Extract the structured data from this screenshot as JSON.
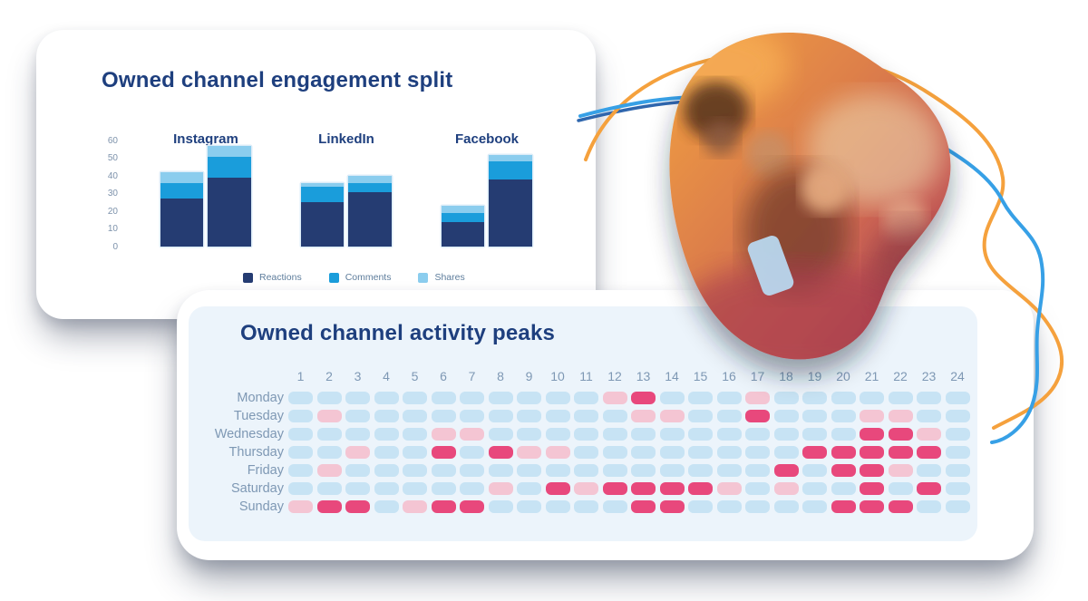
{
  "engagement_card": {
    "title": "Owned channel engagement split"
  },
  "activity_card": {
    "title": "Owned channel activity peaks"
  },
  "chart_data": [
    {
      "type": "bar",
      "stacked": true,
      "title": "Owned channel engagement split",
      "ylim": [
        0,
        60
      ],
      "y_ticks": [
        60,
        50,
        40,
        30,
        20,
        10,
        0
      ],
      "grid": false,
      "legend_position": "bottom",
      "series_names": [
        "Reactions",
        "Comments",
        "Shares"
      ],
      "series_colors": [
        "#253c72",
        "#1a9ddb",
        "#8bcdee"
      ],
      "groups": [
        {
          "category": "Instagram",
          "bars": [
            [
              27,
              9,
              6
            ],
            [
              39,
              12,
              6
            ]
          ]
        },
        {
          "category": "LinkedIn",
          "bars": [
            [
              25,
              9,
              2
            ],
            [
              31,
              5,
              4
            ]
          ]
        },
        {
          "category": "Facebook",
          "bars": [
            [
              14,
              5,
              4
            ],
            [
              38,
              10,
              4
            ]
          ]
        }
      ]
    },
    {
      "type": "heatmap",
      "title": "Owned channel activity peaks",
      "x_labels": [
        "1",
        "2",
        "3",
        "4",
        "5",
        "6",
        "7",
        "8",
        "9",
        "10",
        "11",
        "12",
        "13",
        "14",
        "15",
        "16",
        "17",
        "18",
        "19",
        "20",
        "21",
        "22",
        "23",
        "24"
      ],
      "y_labels": [
        "Monday",
        "Tuesday",
        "Wednesday",
        "Thursday",
        "Friday",
        "Saturday",
        "Sunday"
      ],
      "levels": [
        {
          "name": "low",
          "color": "#c7e3f4"
        },
        {
          "name": "medium",
          "color": "#f4c5d3"
        },
        {
          "name": "high",
          "color": "#e8487c"
        }
      ],
      "values": [
        [
          0,
          0,
          0,
          0,
          0,
          0,
          0,
          0,
          0,
          0,
          0,
          1,
          2,
          0,
          0,
          0,
          1,
          0,
          0,
          0,
          0,
          0,
          0,
          0
        ],
        [
          0,
          1,
          0,
          0,
          0,
          0,
          0,
          0,
          0,
          0,
          0,
          0,
          1,
          1,
          0,
          0,
          2,
          0,
          0,
          0,
          1,
          1,
          0,
          0
        ],
        [
          0,
          0,
          0,
          0,
          0,
          1,
          1,
          0,
          0,
          0,
          0,
          0,
          0,
          0,
          0,
          0,
          0,
          0,
          0,
          0,
          2,
          2,
          1,
          0
        ],
        [
          0,
          0,
          1,
          0,
          0,
          2,
          0,
          2,
          1,
          1,
          0,
          0,
          0,
          0,
          0,
          0,
          0,
          0,
          2,
          2,
          2,
          2,
          2,
          0
        ],
        [
          0,
          1,
          0,
          0,
          0,
          0,
          0,
          0,
          0,
          0,
          0,
          0,
          0,
          0,
          0,
          0,
          0,
          2,
          0,
          2,
          2,
          1,
          0,
          0
        ],
        [
          0,
          0,
          0,
          0,
          0,
          0,
          0,
          1,
          0,
          2,
          1,
          2,
          2,
          2,
          2,
          1,
          0,
          1,
          0,
          0,
          2,
          0,
          2,
          0
        ],
        [
          1,
          2,
          2,
          0,
          1,
          2,
          2,
          0,
          0,
          0,
          0,
          0,
          2,
          2,
          0,
          0,
          0,
          0,
          0,
          2,
          2,
          2,
          0,
          0
        ]
      ]
    }
  ],
  "decor": {
    "line_colors": {
      "orange": "#f5a13d",
      "blue": "#37a0e6",
      "dark_blue": "#2f66ad"
    },
    "blob_gradient": [
      "#f2a13f",
      "#dd7f4a",
      "#c95f55",
      "#9c3547"
    ]
  }
}
